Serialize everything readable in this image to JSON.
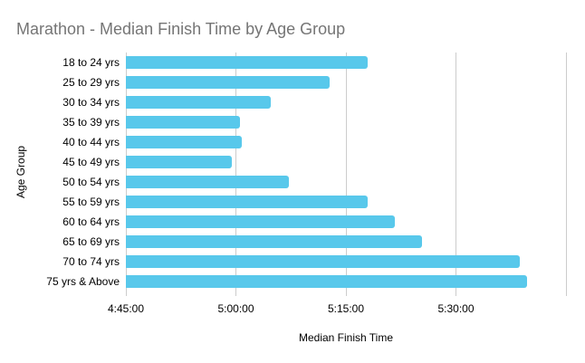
{
  "chart_data": {
    "type": "bar",
    "orientation": "horizontal",
    "title": "Marathon - Median Finish Time by Age Group",
    "xlabel": "Median Finish Time",
    "ylabel": "Age Group",
    "categories": [
      "18 to 24 yrs",
      "25 to 29 yrs",
      "30 to 34 yrs",
      "35 to 39 yrs",
      "40 to 44 yrs",
      "45 to 49 yrs",
      "50 to 54 yrs",
      "55 to 59 yrs",
      "60 to 64 yrs",
      "65 to 69 yrs",
      "70 to 74 yrs",
      "75 yrs & Above"
    ],
    "values": [
      "5:18:00",
      "5:12:50",
      "5:04:45",
      "5:00:30",
      "5:00:45",
      "4:59:30",
      "5:07:15",
      "5:18:00",
      "5:21:40",
      "5:25:20",
      "5:38:45",
      "5:39:45"
    ],
    "xlim": [
      "4:45:00",
      "5:45:00"
    ],
    "x_gridlines": [
      "4:45:00",
      "5:00:00",
      "5:15:00",
      "5:30:00",
      "5:45:00"
    ],
    "x_tick_labels": [
      "4:45:00",
      "5:00:00",
      "5:15:00",
      "5:30:00"
    ],
    "grid": true,
    "legend": "none",
    "bar_color": "#58C8EB",
    "gridline_color": "#cccccc",
    "title_color": "#757575"
  }
}
